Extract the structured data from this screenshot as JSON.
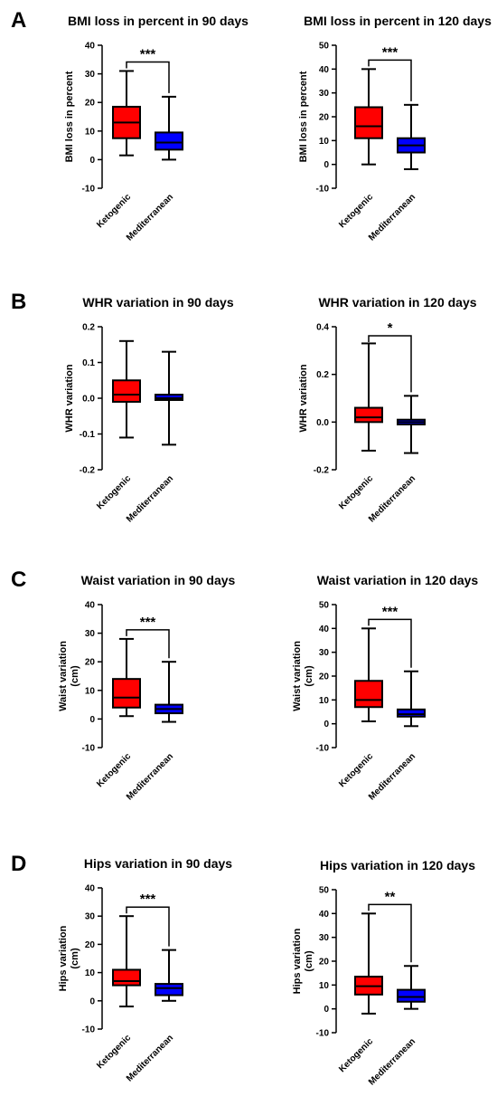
{
  "colors": {
    "ketogenic": "#ff0000",
    "mediterranean": "#0000ff",
    "stroke": "#000000"
  },
  "chart_data": [
    {
      "panel": "A",
      "type": "box",
      "title": "BMI loss in percent in 90 days",
      "ylabel": "BMI loss in percent",
      "ylim": [
        -10,
        40
      ],
      "yticks": [
        -10,
        0,
        10,
        20,
        30,
        40
      ],
      "categories": [
        "Ketogenic",
        "Mediterranean"
      ],
      "boxes": [
        {
          "name": "Ketogenic",
          "min": 1.5,
          "q1": 7.5,
          "median": 13,
          "q3": 18.5,
          "max": 31
        },
        {
          "name": "Mediterranean",
          "min": 0,
          "q1": 3.5,
          "median": 6,
          "q3": 9.5,
          "max": 22
        }
      ],
      "significance": "***"
    },
    {
      "panel": "",
      "type": "box",
      "title": "BMI loss in percent in 120 days",
      "ylabel": "BMI loss in percent",
      "ylim": [
        -10,
        50
      ],
      "yticks": [
        -10,
        0,
        10,
        20,
        30,
        40,
        50
      ],
      "categories": [
        "Ketogenic",
        "Mediterranean"
      ],
      "boxes": [
        {
          "name": "Ketogenic",
          "min": 0,
          "q1": 11,
          "median": 16,
          "q3": 24,
          "max": 40
        },
        {
          "name": "Mediterranean",
          "min": -2,
          "q1": 5,
          "median": 8,
          "q3": 11,
          "max": 25
        }
      ],
      "significance": "***"
    },
    {
      "panel": "B",
      "type": "box",
      "title": "WHR variation in 90 days",
      "ylabel": "WHR variation",
      "ylim": [
        -0.2,
        0.2
      ],
      "yticks": [
        "-0.2",
        "-0.1",
        "0.0",
        "0.1",
        "0.2"
      ],
      "categories": [
        "Ketogenic",
        "Mediterranean"
      ],
      "boxes": [
        {
          "name": "Ketogenic",
          "min": -0.11,
          "q1": -0.01,
          "median": 0.01,
          "q3": 0.05,
          "max": 0.16
        },
        {
          "name": "Mediterranean",
          "min": -0.13,
          "q1": -0.005,
          "median": 0.0,
          "q3": 0.01,
          "max": 0.13
        }
      ],
      "significance": ""
    },
    {
      "panel": "",
      "type": "box",
      "title": "WHR variation in 120 days",
      "ylabel": "WHR variation",
      "ylim": [
        -0.2,
        0.4
      ],
      "yticks": [
        "-0.2",
        "0.0",
        "0.2",
        "0.4"
      ],
      "categories": [
        "Ketogenic",
        "Mediterranean"
      ],
      "boxes": [
        {
          "name": "Ketogenic",
          "min": -0.12,
          "q1": 0.0,
          "median": 0.02,
          "q3": 0.06,
          "max": 0.33
        },
        {
          "name": "Mediterranean",
          "min": -0.13,
          "q1": -0.01,
          "median": 0.0,
          "q3": 0.01,
          "max": 0.11
        }
      ],
      "significance": "*"
    },
    {
      "panel": "C",
      "type": "box",
      "title": "Waist variation in 90 days",
      "ylabel": "Waist variation (cm)",
      "ylim": [
        -10,
        40
      ],
      "yticks": [
        -10,
        0,
        10,
        20,
        30,
        40
      ],
      "categories": [
        "Ketogenic",
        "Mediterranean"
      ],
      "boxes": [
        {
          "name": "Ketogenic",
          "min": 1,
          "q1": 4,
          "median": 7.5,
          "q3": 14,
          "max": 28
        },
        {
          "name": "Mediterranean",
          "min": -1,
          "q1": 2,
          "median": 3.5,
          "q3": 5,
          "max": 20
        }
      ],
      "significance": "***"
    },
    {
      "panel": "",
      "type": "box",
      "title": "Waist variation in 120 days",
      "ylabel": "Waist variation (cm)",
      "ylim": [
        -10,
        50
      ],
      "yticks": [
        -10,
        0,
        10,
        20,
        30,
        40,
        50
      ],
      "categories": [
        "Ketogenic",
        "Mediterranean"
      ],
      "boxes": [
        {
          "name": "Ketogenic",
          "min": 1,
          "q1": 7,
          "median": 10,
          "q3": 18,
          "max": 40
        },
        {
          "name": "Mediterranean",
          "min": -1,
          "q1": 3,
          "median": 4,
          "q3": 6,
          "max": 22
        }
      ],
      "significance": "***"
    },
    {
      "panel": "D",
      "type": "box",
      "title": "Hips variation in 90 days",
      "ylabel": "Hips variation (cm)",
      "ylim": [
        -10,
        40
      ],
      "yticks": [
        -10,
        0,
        10,
        20,
        30,
        40
      ],
      "categories": [
        "Ketogenic",
        "Mediterranean"
      ],
      "boxes": [
        {
          "name": "Ketogenic",
          "min": -2,
          "q1": 5.5,
          "median": 7,
          "q3": 11,
          "max": 30
        },
        {
          "name": "Mediterranean",
          "min": 0,
          "q1": 2,
          "median": 4.5,
          "q3": 6,
          "max": 18
        }
      ],
      "significance": "***"
    },
    {
      "panel": "",
      "type": "box",
      "title": "Hips variation in 120 days",
      "ylabel": "Hips variation (cm)",
      "ylim": [
        -10,
        50
      ],
      "yticks": [
        -10,
        0,
        10,
        20,
        30,
        40,
        50
      ],
      "categories": [
        "Ketogenic",
        "Mediterranean"
      ],
      "boxes": [
        {
          "name": "Ketogenic",
          "min": -2,
          "q1": 6,
          "median": 9.5,
          "q3": 13.5,
          "max": 40
        },
        {
          "name": "Mediterranean",
          "min": 0,
          "q1": 3,
          "median": 5,
          "q3": 8,
          "max": 18
        }
      ],
      "significance": "**"
    }
  ]
}
